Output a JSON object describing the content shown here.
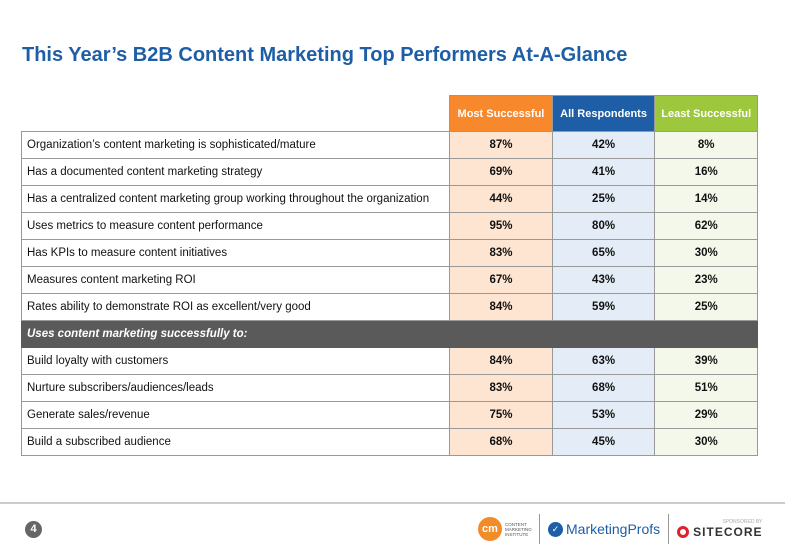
{
  "title": "This Year’s B2B Content Marketing Top Performers At-A-Glance",
  "headers": [
    "Most Successful",
    "All Respondents",
    "Least Successful"
  ],
  "header_colors": [
    "#f7892c",
    "#1e5ea6",
    "#9dc73c"
  ],
  "rows": [
    {
      "label": "Organization’s content marketing is sophisticated/mature",
      "values": [
        "87%",
        "42%",
        "8%"
      ]
    },
    {
      "label": "Has a documented content marketing strategy",
      "values": [
        "69%",
        "41%",
        "16%"
      ]
    },
    {
      "label": "Has a centralized content marketing group working throughout the organization",
      "values": [
        "44%",
        "25%",
        "14%"
      ]
    },
    {
      "label": "Uses metrics to measure content performance",
      "values": [
        "95%",
        "80%",
        "62%"
      ]
    },
    {
      "label": "Has KPIs to measure content initiatives",
      "values": [
        "83%",
        "65%",
        "30%"
      ]
    },
    {
      "label": "Measures content marketing ROI",
      "values": [
        "67%",
        "43%",
        "23%"
      ]
    },
    {
      "label": "Rates ability to demonstrate ROI as excellent/very good",
      "values": [
        "84%",
        "59%",
        "25%"
      ]
    }
  ],
  "section_label": "Uses content marketing successfully to:",
  "section_rows": [
    {
      "label": "Build loyalty with customers",
      "values": [
        "84%",
        "63%",
        "39%"
      ]
    },
    {
      "label": "Nurture subscribers/audiences/leads",
      "values": [
        "83%",
        "68%",
        "51%"
      ]
    },
    {
      "label": "Generate sales/revenue",
      "values": [
        "75%",
        "53%",
        "29%"
      ]
    },
    {
      "label": "Build a subscribed audience",
      "values": [
        "68%",
        "45%",
        "30%"
      ]
    }
  ],
  "footer": {
    "page": "4",
    "cmi_mark": "cm",
    "cmi_text": "CONTENT MARKETING INSTITUTE",
    "mp": "MarketingProfs",
    "sponsored": "SPONSORED BY",
    "sitecore": "SITECORE"
  }
}
